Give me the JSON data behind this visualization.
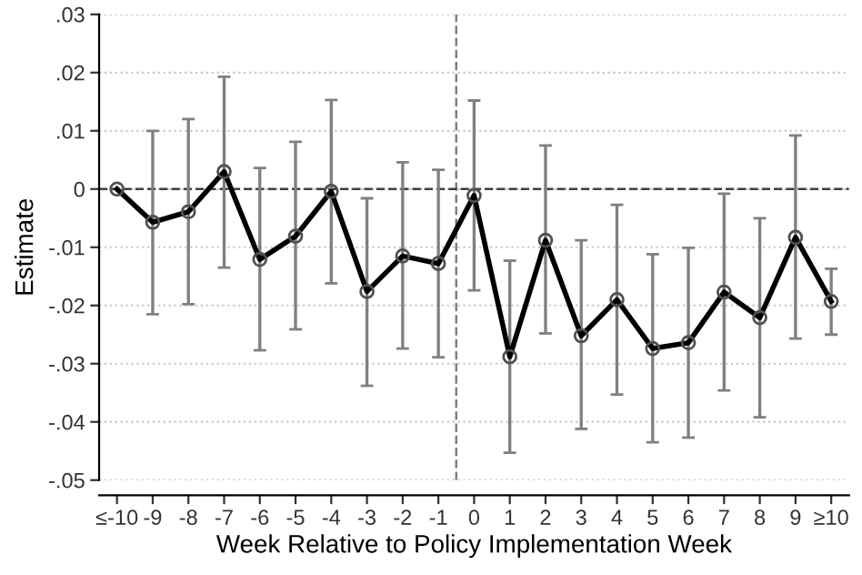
{
  "chart_data": {
    "type": "line",
    "xlabel": "Week Relative to Policy Implementation Week",
    "ylabel": "Estimate",
    "x": [
      -10,
      -9,
      -8,
      -7,
      -6,
      -5,
      -4,
      -3,
      -2,
      -1,
      0,
      1,
      2,
      3,
      4,
      5,
      6,
      7,
      8,
      9,
      10
    ],
    "series": [
      {
        "color": "#000000",
        "values": [
          0,
          -0.0057,
          -0.0039,
          0.003,
          -0.0121,
          -0.0081,
          -0.0004,
          -0.0176,
          -0.0115,
          -0.0128,
          -0.0011,
          -0.0288,
          -0.0088,
          -0.0252,
          -0.019,
          -0.0274,
          -0.0264,
          -0.0177,
          -0.0221,
          -0.0083,
          -0.0193
        ],
        "errors": [
          null,
          [
            -0.0215,
            0.01
          ],
          [
            -0.0198,
            0.012
          ],
          [
            -0.0135,
            0.0193
          ],
          [
            -0.0277,
            0.0036
          ],
          [
            -0.0241,
            0.0081
          ],
          [
            -0.0162,
            0.0153
          ],
          [
            -0.0338,
            -0.0016
          ],
          [
            -0.0274,
            0.0046
          ],
          [
            -0.0289,
            0.0033
          ],
          [
            -0.0174,
            0.0152
          ],
          [
            -0.0453,
            -0.0123
          ],
          [
            -0.0248,
            0.0075
          ],
          [
            -0.0412,
            -0.0088
          ],
          [
            -0.0353,
            -0.0027
          ],
          [
            -0.0435,
            -0.0112
          ],
          [
            -0.0427,
            -0.0101
          ],
          [
            -0.0346,
            -0.0008
          ],
          [
            -0.0392,
            -0.005
          ],
          [
            -0.0257,
            0.0092
          ],
          [
            -0.025,
            -0.0137
          ]
        ]
      }
    ],
    "marker": "circle",
    "line_style": "solid",
    "grid": "y",
    "xlim": [
      -10.5,
      10.5
    ],
    "xticks": [
      {
        "value": -10,
        "label": "≤-10"
      },
      -9,
      -8,
      -7,
      -6,
      -5,
      -4,
      -3,
      -2,
      -1,
      0,
      1,
      2,
      3,
      4,
      5,
      6,
      7,
      8,
      9,
      {
        "value": 10,
        "label": "≥10"
      }
    ],
    "ylim": [
      -0.05,
      0.03
    ],
    "yticks": [
      {
        "value": -0.05,
        "label": "-.05"
      },
      {
        "value": -0.04,
        "label": "-.04"
      },
      {
        "value": -0.03,
        "label": "-.03"
      },
      {
        "value": -0.02,
        "label": "-.02"
      },
      {
        "value": -0.01,
        "label": "-.01"
      },
      0,
      {
        "value": 0.01,
        "label": ".01"
      },
      {
        "value": 0.02,
        "label": ".02"
      },
      {
        "value": 0.03,
        "label": ".03"
      }
    ],
    "ref_lines": [
      {
        "axis": "x",
        "value": -0.5,
        "color": "#808080",
        "line_style": "dashed"
      },
      {
        "axis": "y",
        "value": 0,
        "color": "#404040",
        "line_style": "dashed"
      }
    ]
  }
}
